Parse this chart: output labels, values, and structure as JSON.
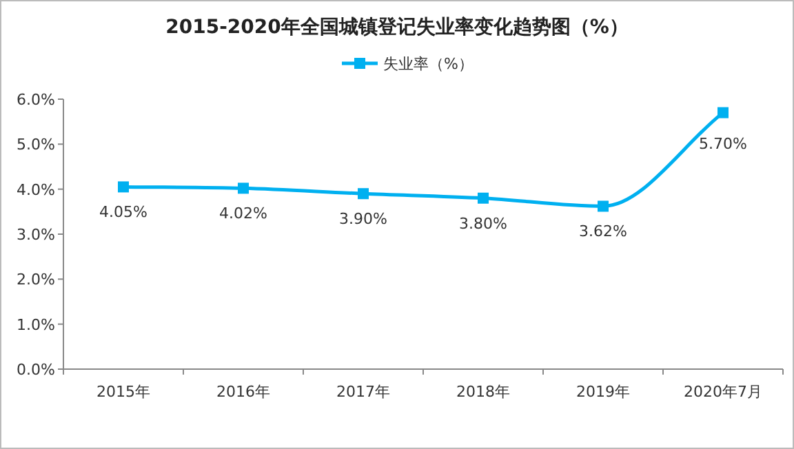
{
  "chart_data": {
    "type": "line",
    "title": "2015-2020年全国城镇登记失业率变化趋势图（%）",
    "categories": [
      "2015年",
      "2016年",
      "2017年",
      "2018年",
      "2019年",
      "2020年7月"
    ],
    "series": [
      {
        "name": "失业率（%）",
        "color": "#00b0f0",
        "values": [
          4.05,
          4.02,
          3.9,
          3.8,
          3.62,
          5.7
        ],
        "value_labels": [
          "4.05%",
          "4.02%",
          "3.90%",
          "3.80%",
          "3.62%",
          "5.70%"
        ]
      }
    ],
    "ylim": [
      0,
      6
    ],
    "yticks": [
      {
        "value": 0,
        "label": "0.0%"
      },
      {
        "value": 1,
        "label": "1.0%"
      },
      {
        "value": 2,
        "label": "2.0%"
      },
      {
        "value": 3,
        "label": "3.0%"
      },
      {
        "value": 4,
        "label": "4.0%"
      },
      {
        "value": 5,
        "label": "5.0%"
      },
      {
        "value": 6,
        "label": "6.0%"
      }
    ],
    "marker": "square",
    "legend": "top",
    "grid": false
  }
}
